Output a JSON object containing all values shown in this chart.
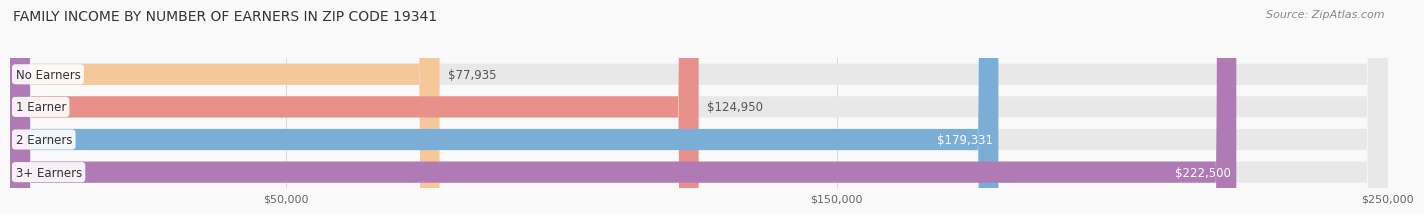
{
  "title": "FAMILY INCOME BY NUMBER OF EARNERS IN ZIP CODE 19341",
  "source": "Source: ZipAtlas.com",
  "categories": [
    "No Earners",
    "1 Earner",
    "2 Earners",
    "3+ Earners"
  ],
  "values": [
    77935,
    124950,
    179331,
    222500
  ],
  "bar_colors": [
    "#f5c89a",
    "#e8908a",
    "#7aaed6",
    "#b07ab5"
  ],
  "bar_bg_color": "#e8e8e8",
  "label_colors": [
    "#555555",
    "#555555",
    "#ffffff",
    "#ffffff"
  ],
  "value_labels": [
    "$77,935",
    "$124,950",
    "$179,331",
    "$222,500"
  ],
  "xlim": [
    0,
    250000
  ],
  "xticks": [
    50000,
    150000,
    250000
  ],
  "xtick_labels": [
    "$50,000",
    "$150,000",
    "$250,000"
  ],
  "background_color": "#f9f9f9",
  "title_fontsize": 10,
  "source_fontsize": 8,
  "bar_label_fontsize": 8.5,
  "value_label_fontsize": 8.5,
  "bar_height": 0.65
}
